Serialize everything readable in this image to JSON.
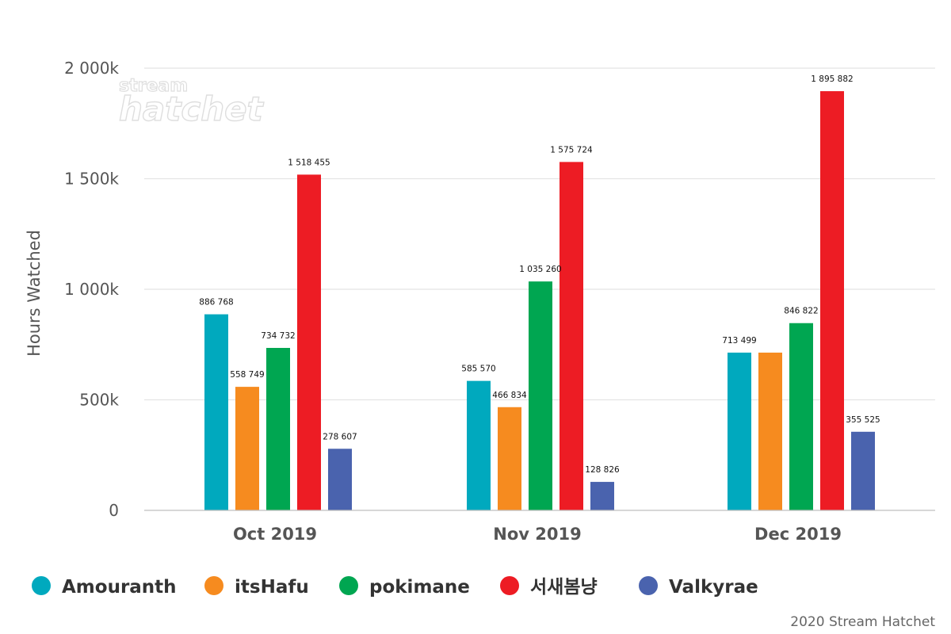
{
  "chart_data": {
    "type": "bar",
    "title": "",
    "xlabel": "",
    "ylabel": "Hours Watched",
    "ylim": [
      0,
      2000000
    ],
    "yticks": [
      {
        "value": 0,
        "label": "0"
      },
      {
        "value": 500000,
        "label": "500k"
      },
      {
        "value": 1000000,
        "label": "1 000k"
      },
      {
        "value": 1500000,
        "label": "1 500k"
      },
      {
        "value": 2000000,
        "label": "2 000k"
      }
    ],
    "categories": [
      "Oct 2019",
      "Nov 2019",
      "Dec 2019"
    ],
    "series": [
      {
        "name": "Amouranth",
        "color": "#00A9BE",
        "values": [
          886768,
          585570,
          713499
        ],
        "labels": [
          "886 768",
          "585 570",
          "713 499"
        ]
      },
      {
        "name": "itsHafu",
        "color": "#F68B1F",
        "values": [
          558749,
          466834,
          713499
        ],
        "labels": [
          "558 749",
          "466 834",
          ""
        ]
      },
      {
        "name": "pokimane",
        "color": "#00A651",
        "values": [
          734732,
          1035260,
          846822
        ],
        "labels": [
          "734 732",
          "1 035 260",
          "846 822"
        ]
      },
      {
        "name": "서새봄냥",
        "color": "#ED1C24",
        "values": [
          1518455,
          1575724,
          1895882
        ],
        "labels": [
          "1 518 455",
          "1 575 724",
          "1 895 882"
        ]
      },
      {
        "name": "Valkyrae",
        "color": "#4A63AE",
        "values": [
          278607,
          128826,
          355525
        ],
        "labels": [
          "278 607",
          "128 826",
          "355 525"
        ]
      }
    ],
    "grid": true,
    "legend_position": "bottom"
  },
  "watermark": {
    "top": "stream",
    "bottom": "hatchet"
  },
  "credit": "2020 Stream Hatchet"
}
